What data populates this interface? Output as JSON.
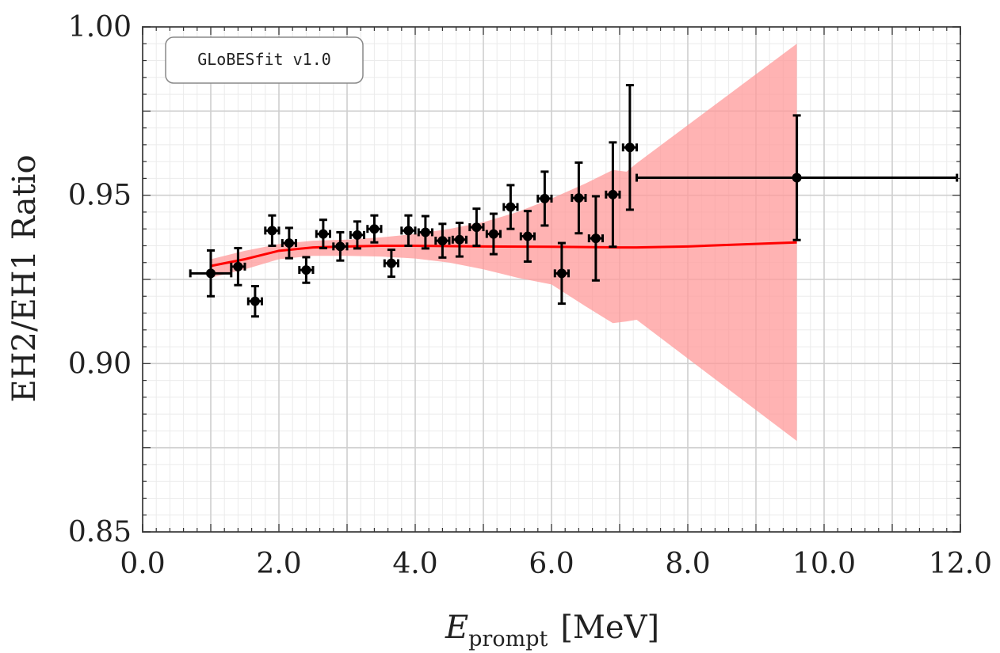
{
  "badge": {
    "text": "GLoBESfit v1.0"
  },
  "colors": {
    "fit_line": "#ff0000",
    "band_fill": "#ff9999",
    "points": "#000000",
    "grid_major": "#cfcfcf",
    "grid_minor": "#ebebeb",
    "frame": "#555555"
  },
  "chart_data": {
    "type": "scatter",
    "title": "",
    "xlabel_main": "E",
    "xlabel_sub": "prompt",
    "xlabel_unit": "[MeV]",
    "ylabel": "EH2/EH1 Ratio",
    "xlim": [
      0,
      12
    ],
    "ylim": [
      0.85,
      1.0
    ],
    "xticks": [
      0,
      2,
      4,
      6,
      8,
      10,
      12
    ],
    "xtick_labels": [
      "0.0",
      "2.0",
      "4.0",
      "6.0",
      "8.0",
      "10.0",
      "12.0"
    ],
    "yticks": [
      0.85,
      0.9,
      0.95,
      1.0
    ],
    "ytick_labels": [
      "0.85",
      "0.90",
      "0.95",
      "1.00"
    ],
    "grid": true,
    "series": [
      {
        "kind": "errorbar",
        "points": [
          {
            "x": 1.0,
            "y": 0.9268,
            "xerr": 0.3,
            "yerr": 0.0068
          },
          {
            "x": 1.4,
            "y": 0.9288,
            "xerr": 0.1,
            "yerr": 0.0055
          },
          {
            "x": 1.65,
            "y": 0.9185,
            "xerr": 0.1,
            "yerr": 0.0045
          },
          {
            "x": 1.9,
            "y": 0.9395,
            "xerr": 0.1,
            "yerr": 0.0045
          },
          {
            "x": 2.15,
            "y": 0.9358,
            "xerr": 0.1,
            "yerr": 0.0045
          },
          {
            "x": 2.4,
            "y": 0.9278,
            "xerr": 0.1,
            "yerr": 0.0038
          },
          {
            "x": 2.65,
            "y": 0.9385,
            "xerr": 0.1,
            "yerr": 0.0042
          },
          {
            "x": 2.9,
            "y": 0.9348,
            "xerr": 0.1,
            "yerr": 0.0042
          },
          {
            "x": 3.15,
            "y": 0.9382,
            "xerr": 0.1,
            "yerr": 0.004
          },
          {
            "x": 3.4,
            "y": 0.94,
            "xerr": 0.1,
            "yerr": 0.004
          },
          {
            "x": 3.65,
            "y": 0.9298,
            "xerr": 0.1,
            "yerr": 0.004
          },
          {
            "x": 3.9,
            "y": 0.9395,
            "xerr": 0.1,
            "yerr": 0.0045
          },
          {
            "x": 4.15,
            "y": 0.939,
            "xerr": 0.1,
            "yerr": 0.0048
          },
          {
            "x": 4.4,
            "y": 0.9365,
            "xerr": 0.1,
            "yerr": 0.005
          },
          {
            "x": 4.65,
            "y": 0.9368,
            "xerr": 0.1,
            "yerr": 0.005
          },
          {
            "x": 4.9,
            "y": 0.9405,
            "xerr": 0.1,
            "yerr": 0.0055
          },
          {
            "x": 5.15,
            "y": 0.9385,
            "xerr": 0.1,
            "yerr": 0.006
          },
          {
            "x": 5.4,
            "y": 0.9465,
            "xerr": 0.1,
            "yerr": 0.0065
          },
          {
            "x": 5.65,
            "y": 0.9378,
            "xerr": 0.1,
            "yerr": 0.0075
          },
          {
            "x": 5.9,
            "y": 0.949,
            "xerr": 0.1,
            "yerr": 0.008
          },
          {
            "x": 6.15,
            "y": 0.9268,
            "xerr": 0.1,
            "yerr": 0.009
          },
          {
            "x": 6.4,
            "y": 0.9492,
            "xerr": 0.1,
            "yerr": 0.0105
          },
          {
            "x": 6.65,
            "y": 0.9372,
            "xerr": 0.1,
            "yerr": 0.0125
          },
          {
            "x": 6.9,
            "y": 0.9502,
            "xerr": 0.1,
            "yerr": 0.0155
          },
          {
            "x": 7.15,
            "y": 0.9642,
            "xerr": 0.1,
            "yerr": 0.0185
          },
          {
            "x": 9.6,
            "y": 0.9552,
            "xerr": 2.35,
            "yerr": 0.0185
          }
        ]
      },
      {
        "kind": "line",
        "x": [
          1.0,
          1.5,
          2.0,
          2.5,
          3.0,
          3.5,
          4.0,
          5.0,
          6.0,
          7.0,
          7.25,
          8.0,
          9.6
        ],
        "y": [
          0.929,
          0.931,
          0.9335,
          0.9345,
          0.9348,
          0.935,
          0.935,
          0.9348,
          0.9347,
          0.9345,
          0.9345,
          0.9348,
          0.936
        ]
      },
      {
        "kind": "band",
        "x": [
          1.0,
          1.5,
          2.0,
          2.5,
          3.0,
          3.5,
          4.0,
          4.5,
          5.0,
          5.5,
          6.0,
          6.5,
          6.9,
          7.1,
          7.25,
          9.6
        ],
        "lower": [
          0.9255,
          0.928,
          0.931,
          0.932,
          0.932,
          0.9318,
          0.9312,
          0.93,
          0.928,
          0.9255,
          0.9235,
          0.917,
          0.912,
          0.9125,
          0.913,
          0.877
        ],
        "upper": [
          0.931,
          0.9335,
          0.9355,
          0.9365,
          0.9368,
          0.9375,
          0.9385,
          0.94,
          0.942,
          0.945,
          0.949,
          0.9535,
          0.9575,
          0.957,
          0.9595,
          0.995
        ]
      }
    ]
  }
}
